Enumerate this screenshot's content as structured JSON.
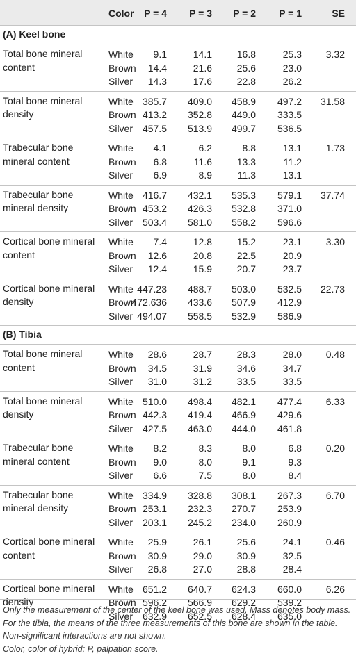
{
  "header": {
    "blank": "",
    "color": "Color",
    "p4": "P = 4",
    "p3": "P = 3",
    "p2": "P = 2",
    "p1": "P = 1",
    "se": "SE"
  },
  "sections": [
    {
      "title": "(A) Keel bone",
      "groups": [
        {
          "param": "Total bone mineral content",
          "se": "3.32",
          "rows": [
            {
              "color": "White",
              "p4": "9.1",
              "p3": "14.1",
              "p2": "16.8",
              "p1": "25.3"
            },
            {
              "color": "Brown",
              "p4": "14.4",
              "p3": "21.6",
              "p2": "25.6",
              "p1": "23.0"
            },
            {
              "color": "Silver",
              "p4": "14.3",
              "p3": "17.6",
              "p2": "22.8",
              "p1": "26.2"
            }
          ]
        },
        {
          "param": "Total bone mineral density",
          "se": "31.58",
          "rows": [
            {
              "color": "White",
              "p4": "385.7",
              "p3": "409.0",
              "p2": "458.9",
              "p1": "497.2"
            },
            {
              "color": "Brown",
              "p4": "413.2",
              "p3": "352.8",
              "p2": "449.0",
              "p1": "333.5"
            },
            {
              "color": "Silver",
              "p4": "457.5",
              "p3": "513.9",
              "p2": "499.7",
              "p1": "536.5"
            }
          ]
        },
        {
          "param": "Trabecular bone mineral content",
          "se": "1.73",
          "rows": [
            {
              "color": "White",
              "p4": "4.1",
              "p3": "6.2",
              "p2": "8.8",
              "p1": "13.1"
            },
            {
              "color": "Brown",
              "p4": "6.8",
              "p3": "11.6",
              "p2": "13.3",
              "p1": "11.2"
            },
            {
              "color": "Silver",
              "p4": "6.9",
              "p3": "8.9",
              "p2": "11.3",
              "p1": "13.1"
            }
          ]
        },
        {
          "param": "Trabecular bone mineral density",
          "se": "37.74",
          "rows": [
            {
              "color": "White",
              "p4": "416.7",
              "p3": "432.1",
              "p2": "535.3",
              "p1": "579.1"
            },
            {
              "color": "Brown",
              "p4": "453.2",
              "p3": "426.3",
              "p2": "532.8",
              "p1": "371.0"
            },
            {
              "color": "Silver",
              "p4": "503.4",
              "p3": "581.0",
              "p2": "558.2",
              "p1": "596.6"
            }
          ]
        },
        {
          "param": "Cortical bone mineral content",
          "se": "3.30",
          "rows": [
            {
              "color": "White",
              "p4": "7.4",
              "p3": "12.8",
              "p2": "15.2",
              "p1": "23.1"
            },
            {
              "color": "Brown",
              "p4": "12.6",
              "p3": "20.8",
              "p2": "22.5",
              "p1": "20.9"
            },
            {
              "color": "Silver",
              "p4": "12.4",
              "p3": "15.9",
              "p2": "20.7",
              "p1": "23.7"
            }
          ]
        },
        {
          "param": "Cortical bone mineral density",
          "se": "22.73",
          "rows": [
            {
              "color": "White",
              "p4": "447.23",
              "p3": "488.7",
              "p2": "503.0",
              "p1": "532.5"
            },
            {
              "color": "Brown",
              "p4": "472.636",
              "p3": "433.6",
              "p2": "507.9",
              "p1": "412.9"
            },
            {
              "color": "Silver",
              "p4": "494.07",
              "p3": "558.5",
              "p2": "532.9",
              "p1": "586.9"
            }
          ]
        }
      ]
    },
    {
      "title": "(B) Tibia",
      "groups": [
        {
          "param": "Total bone mineral content",
          "se": "0.48",
          "rows": [
            {
              "color": "White",
              "p4": "28.6",
              "p3": "28.7",
              "p2": "28.3",
              "p1": "28.0"
            },
            {
              "color": "Brown",
              "p4": "34.5",
              "p3": "31.9",
              "p2": "34.6",
              "p1": "34.7"
            },
            {
              "color": "Silver",
              "p4": "31.0",
              "p3": "31.2",
              "p2": "33.5",
              "p1": "33.5"
            }
          ]
        },
        {
          "param": "Total bone mineral density",
          "se": "6.33",
          "rows": [
            {
              "color": "White",
              "p4": "510.0",
              "p3": "498.4",
              "p2": "482.1",
              "p1": "477.4"
            },
            {
              "color": "Brown",
              "p4": "442.3",
              "p3": "419.4",
              "p2": "466.9",
              "p1": "429.6"
            },
            {
              "color": "Silver",
              "p4": "427.5",
              "p3": "463.0",
              "p2": "444.0",
              "p1": "461.8"
            }
          ]
        },
        {
          "param": "Trabecular bone mineral content",
          "se": "0.20",
          "rows": [
            {
              "color": "White",
              "p4": "8.2",
              "p3": "8.3",
              "p2": "8.0",
              "p1": "6.8"
            },
            {
              "color": "Brown",
              "p4": "9.0",
              "p3": "8.0",
              "p2": "9.1",
              "p1": "9.3"
            },
            {
              "color": "Silver",
              "p4": "6.6",
              "p3": "7.5",
              "p2": "8.0",
              "p1": "8.4"
            }
          ]
        },
        {
          "param": "Trabecular bone mineral density",
          "se": "6.70",
          "rows": [
            {
              "color": "White",
              "p4": "334.9",
              "p3": "328.8",
              "p2": "308.1",
              "p1": "267.3"
            },
            {
              "color": "Brown",
              "p4": "253.1",
              "p3": "232.3",
              "p2": "270.7",
              "p1": "253.9"
            },
            {
              "color": "Silver",
              "p4": "203.1",
              "p3": "245.2",
              "p2": "234.0",
              "p1": "260.9"
            }
          ]
        },
        {
          "param": "Cortical bone mineral content",
          "se": "0.46",
          "rows": [
            {
              "color": "White",
              "p4": "25.9",
              "p3": "26.1",
              "p2": "25.6",
              "p1": "24.1"
            },
            {
              "color": "Brown",
              "p4": "30.9",
              "p3": "29.0",
              "p2": "30.9",
              "p1": "32.5"
            },
            {
              "color": "Silver",
              "p4": "26.8",
              "p3": "27.0",
              "p2": "28.8",
              "p1": "28.4"
            }
          ]
        },
        {
          "param": "Cortical bone mineral density",
          "se": "6.26",
          "rows": [
            {
              "color": "White",
              "p4": "651.2",
              "p3": "640.7",
              "p2": "624.3",
              "p1": "660.0"
            },
            {
              "color": "Brown",
              "p4": "596.2",
              "p3": "566.9",
              "p2": "629.2",
              "p1": "539.2"
            },
            {
              "color": "Silver",
              "p4": "632.9",
              "p3": "652.5",
              "p2": "628.4",
              "p1": "635.0"
            }
          ]
        }
      ]
    }
  ],
  "footnotes": [
    "Only the measurement of the center of the keel bone was used. Mass denotes body mass. For the tibia, the means of the three measurements of this bone are shown in the table. Non-significant interactions are not shown.",
    "Color, color of hybrid; P, palpation score."
  ]
}
